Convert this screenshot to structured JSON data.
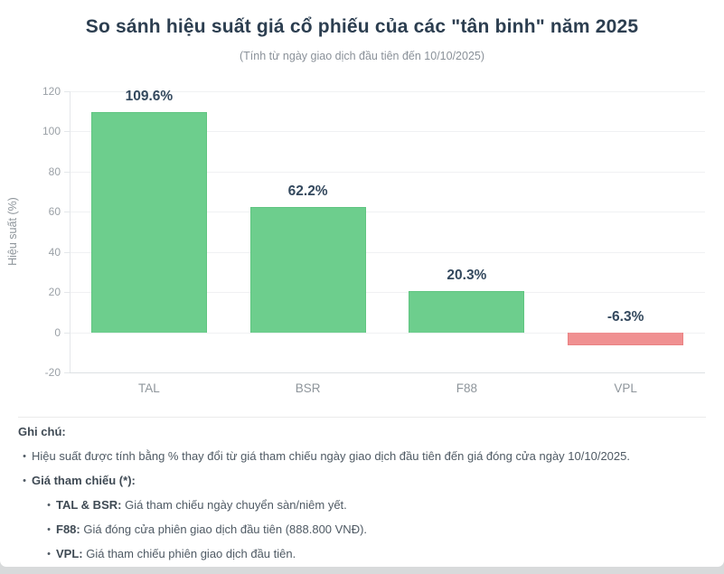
{
  "page": {
    "title": "So sánh hiệu suất giá cổ phiếu của các \"tân binh\" năm 2025",
    "subtitle": "(Tính từ ngày giao dịch đầu tiên đến 10/10/2025)"
  },
  "chart_data": {
    "type": "bar",
    "categories": [
      "TAL",
      "BSR",
      "F88",
      "VPL"
    ],
    "values": [
      109.6,
      62.2,
      20.3,
      -6.3
    ],
    "value_labels": [
      "109.6%",
      "62.2%",
      "20.3%",
      "-6.3%"
    ],
    "title": "So sánh hiệu suất giá cổ phiếu của các \"tân binh\" năm 2025",
    "subtitle": "(Tính từ ngày giao dịch đầu tiên đến 10/10/2025)",
    "xlabel": "",
    "ylabel": "Hiệu suất (%)",
    "ylim": [
      -20,
      120
    ],
    "ytick_step": 20,
    "ytick_labels": [
      "120",
      "100",
      "80",
      "60",
      "40",
      "20",
      "0",
      "-20"
    ],
    "grid": true,
    "legend": false,
    "colors": {
      "positive_fill": "#6dce8d",
      "positive_border": "#60c581",
      "negative_fill": "#f09091",
      "negative_border": "#ea8283"
    }
  },
  "notes": {
    "heading": "Ghi chú:",
    "item1": "Hiệu suất được tính bằng % thay đổi từ giá tham chiếu ngày giao dịch đầu tiên đến giá đóng cửa ngày 10/10/2025.",
    "item2_bold": "Giá tham chiếu (*):",
    "sub1_bold": "TAL & BSR:",
    "sub1_text": " Giá tham chiếu ngày chuyển sàn/niêm yết.",
    "sub2_bold": "F88:",
    "sub2_text": " Giá đóng cửa phiên giao dịch đầu tiên (888.800 VNĐ).",
    "sub3_bold": "VPL:",
    "sub3_text": " Giá tham chiếu phiên giao dịch đầu tiên.",
    "bullet_char": "•"
  },
  "theme": {
    "title_color": "#2c3e50",
    "subtitle_color": "#8a9199",
    "value_label_color": "#34495e",
    "tick_color": "#9aa0a6",
    "card_bg": "#ffffff",
    "page_bg": "#d8dadb"
  }
}
